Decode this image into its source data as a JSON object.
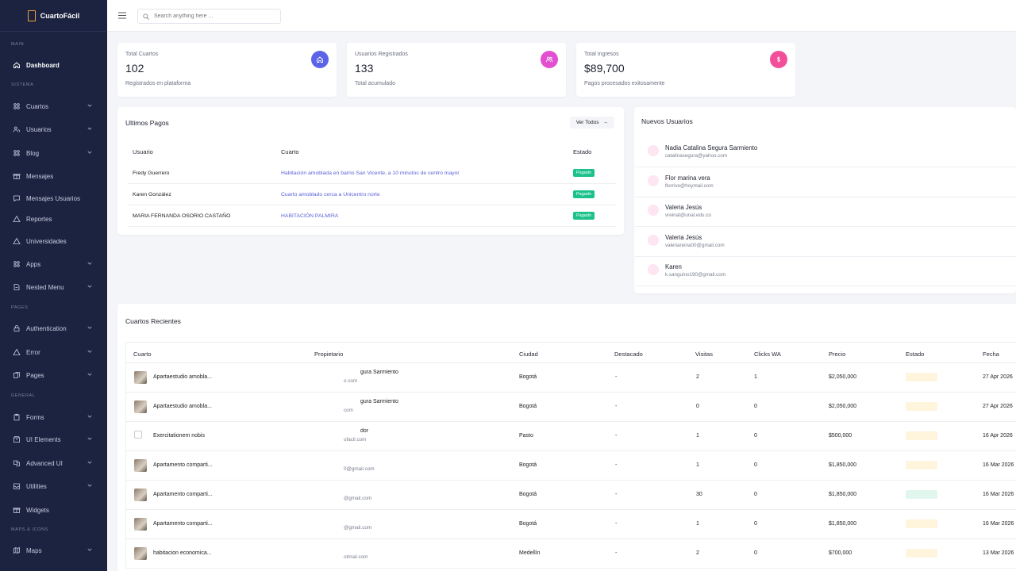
{
  "brand": {
    "name": "CuartoFácil"
  },
  "sidebar": {
    "sections": {
      "main": "MAIN",
      "sistema": "SISTEMA",
      "pages": "PAGES",
      "general": "GENERAL",
      "maps": "MAPS & ICONS"
    },
    "items": [
      {
        "label": "Dashboard",
        "icon": "home-icon",
        "active": true
      },
      {
        "label": "Cuartos",
        "icon": "users-icon",
        "chevron": true
      },
      {
        "label": "Usuarios",
        "icon": "user-group-icon",
        "chevron": true
      },
      {
        "label": "Blog",
        "icon": "users-icon",
        "chevron": true
      },
      {
        "label": "Mensajes",
        "icon": "gift-icon"
      },
      {
        "label": "Mensajes Usuarios",
        "icon": "message-icon"
      },
      {
        "label": "Reportes",
        "icon": "warning-icon"
      },
      {
        "label": "Universidades",
        "icon": "warning-icon"
      },
      {
        "label": "Apps",
        "icon": "users-icon",
        "chevron": true
      },
      {
        "label": "Nested Menu",
        "icon": "file-icon",
        "chevron": true
      },
      {
        "label": "Authentication",
        "icon": "lock-icon",
        "chevron": true
      },
      {
        "label": "Error",
        "icon": "warning-icon",
        "chevron": true
      },
      {
        "label": "Pages",
        "icon": "copy-icon",
        "chevron": true
      },
      {
        "label": "Forms",
        "icon": "clipboard-icon",
        "chevron": true
      },
      {
        "label": "UI Elements",
        "icon": "box-icon",
        "chevron": true
      },
      {
        "label": "Advanced UI",
        "icon": "layers-icon",
        "chevron": true
      },
      {
        "label": "Utilities",
        "icon": "inbox-icon",
        "chevron": true
      },
      {
        "label": "Widgets",
        "icon": "gift-icon"
      },
      {
        "label": "Maps",
        "icon": "map-icon",
        "chevron": true
      }
    ]
  },
  "header": {
    "search_placeholder": "Search anything here ..."
  },
  "stats": [
    {
      "title": "Total Cuartos",
      "value": "102",
      "sub": "Registrados en plataforma",
      "color": "#5b63e6"
    },
    {
      "title": "Usuarios Registrados",
      "value": "133",
      "sub": "Total acumulado",
      "color": "#e24fd1"
    },
    {
      "title": "Total Ingresos",
      "value": "$89,700",
      "sub": "Pagos procesados exitosamente",
      "color": "#f24f9a"
    }
  ],
  "payments": {
    "title": "Ultimos Pagos",
    "view_all": "Ver Todos",
    "headers": {
      "usuario": "Usuario",
      "cuarto": "Cuarto",
      "estado": "Estado"
    },
    "rows": [
      {
        "usuario": "Fredy Guerrero",
        "cuarto": "Habitación amoblada en barrio San Vicente, a 10 minutos de centro mayor",
        "estado": "Pagado"
      },
      {
        "usuario": "Karen González",
        "cuarto": "Cuarto amoblado cerca a Unicentro norte",
        "estado": "Pagado"
      },
      {
        "usuario": "MARIA FERNANDA OSORIO CASTAÑO",
        "cuarto": "HABITACIÓN PALMIRA",
        "estado": "Pagado"
      }
    ]
  },
  "new_users": {
    "title": "Nuevos Usuarios",
    "items": [
      {
        "name": "Nadia Catalina Segura Sarmiento",
        "email": "catalinasegura@yahoo.com"
      },
      {
        "name": "Flor marina vera",
        "email": "florrive@hoymail.com"
      },
      {
        "name": "Valeria Jesús",
        "email": "vreinat@unal.edu.co"
      },
      {
        "name": "Valeria Jesús",
        "email": "valeriareina00@gmail.com"
      },
      {
        "name": "Karen",
        "email": "k.sanguino190@gmail.com"
      }
    ]
  },
  "recent": {
    "title": "Cuartos Recientes",
    "headers": {
      "cuarto": "Cuarto",
      "propietario": "Propietario",
      "ciudad": "Ciudad",
      "destacado": "Destacado",
      "visitas": "Visitas",
      "clicks": "Clicks WA",
      "precio": "Precio",
      "estado": "Estado",
      "fecha": "Fecha"
    },
    "rows": [
      {
        "cuarto": "Apartaestudio amobla...",
        "owner1": "gura Sarmiento",
        "owner2": "o.com",
        "ciudad": "Bogotá",
        "destacado": "-",
        "visitas": "2",
        "clicks": "1",
        "precio": "$2,050,000",
        "fecha": "27 Apr 2026",
        "status": "pending",
        "thumb": "photo"
      },
      {
        "cuarto": "Apartaestudio amobla...",
        "owner1": "gura Sarmiento",
        "owner2": "com",
        "ciudad": "Bogotá",
        "destacado": "-",
        "visitas": "0",
        "clicks": "0",
        "precio": "$2,050,000",
        "fecha": "27 Apr 2026",
        "status": "pending",
        "thumb": "photo"
      },
      {
        "cuarto": "Exercitationem nobis",
        "owner1": "dor",
        "owner2": "ofacil.com",
        "ciudad": "Pasto",
        "destacado": "-",
        "visitas": "1",
        "clicks": "0",
        "precio": "$500,000",
        "fecha": "16 Apr 2026",
        "status": "pending",
        "thumb": "broken"
      },
      {
        "cuarto": "Apartamento comparti...",
        "owner1": "",
        "owner2": "0@gmail.com",
        "ciudad": "Bogotá",
        "destacado": "-",
        "visitas": "1",
        "clicks": "0",
        "precio": "$1,850,000",
        "fecha": "16 Mar 2026",
        "status": "pending",
        "thumb": "photo"
      },
      {
        "cuarto": "Apartamento comparti...",
        "owner1": "",
        "owner2": "@gmail.com",
        "ciudad": "Bogotá",
        "destacado": "-",
        "visitas": "30",
        "clicks": "0",
        "precio": "$1,850,000",
        "fecha": "16 Mar 2026",
        "status": "ok",
        "thumb": "photo"
      },
      {
        "cuarto": "Apartamento comparti...",
        "owner1": "",
        "owner2": "@gmail.com",
        "ciudad": "Bogotá",
        "destacado": "-",
        "visitas": "1",
        "clicks": "0",
        "precio": "$1,850,000",
        "fecha": "16 Mar 2026",
        "status": "pending",
        "thumb": "photo"
      },
      {
        "cuarto": "habitacion economica...",
        "owner1": "",
        "owner2": "otmail.com",
        "ciudad": "Medellín",
        "destacado": "-",
        "visitas": "2",
        "clicks": "0",
        "precio": "$700,000",
        "fecha": "13 Mar 2026",
        "status": "pending",
        "thumb": "photo"
      }
    ]
  }
}
